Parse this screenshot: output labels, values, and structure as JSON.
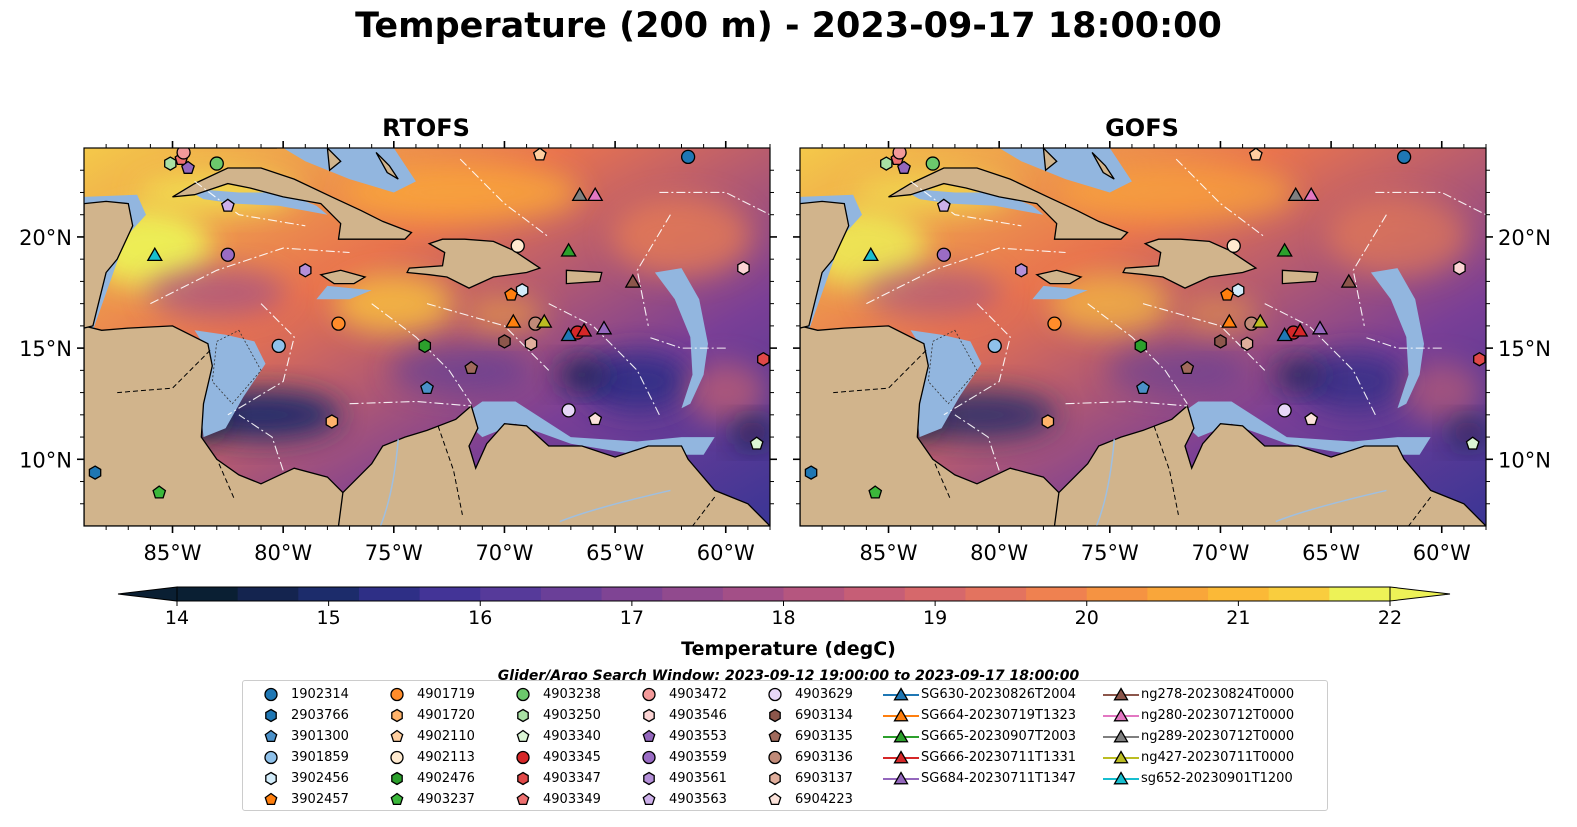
{
  "title": "Temperature (200 m) - 2023-09-17 18:00:00",
  "panels": [
    {
      "title": "RTOFS"
    },
    {
      "title": "GOFS"
    }
  ],
  "axes": {
    "x_ticks": [
      "85°W",
      "80°W",
      "75°W",
      "70°W",
      "65°W",
      "60°W"
    ],
    "y_ticks": [
      "20°N",
      "15°N",
      "10°N"
    ],
    "lon_range": [
      -89,
      -58
    ],
    "lat_range": [
      7,
      24
    ]
  },
  "colorbar": {
    "label": "Temperature (degC)",
    "ticks": [
      "14",
      "15",
      "16",
      "17",
      "18",
      "19",
      "20",
      "21",
      "22"
    ],
    "range": [
      14,
      22
    ],
    "colors": [
      "#0a1f33",
      "#14244f",
      "#1c2c6b",
      "#2e2f86",
      "#433497",
      "#563a9a",
      "#6a3f98",
      "#7f4494",
      "#914a8e",
      "#a34f87",
      "#b5567f",
      "#c65e76",
      "#d6686b",
      "#e3735f",
      "#ef8150",
      "#f59342",
      "#f9a63a",
      "#fbb937",
      "#f9cd3e",
      "#edf257"
    ]
  },
  "search_window": "Glider/Argo Search Window: 2023-09-12 19:00:00 to 2023-09-17 18:00:00",
  "legend": [
    {
      "label": "1902314",
      "marker": "circle",
      "color": "#1f77b4"
    },
    {
      "label": "2903766",
      "marker": "hexagon",
      "color": "#1f77b4"
    },
    {
      "label": "3901300",
      "marker": "pentagon",
      "color": "#4a90c8"
    },
    {
      "label": "3901859",
      "marker": "circle",
      "color": "#8fc1ea"
    },
    {
      "label": "3902456",
      "marker": "hexagon",
      "color": "#d2ecfa"
    },
    {
      "label": "3902457",
      "marker": "pentagon",
      "color": "#ff7f0e"
    },
    {
      "label": "4901719",
      "marker": "circle",
      "color": "#ff8c2a"
    },
    {
      "label": "4901720",
      "marker": "hexagon",
      "color": "#ffb36b"
    },
    {
      "label": "4902110",
      "marker": "pentagon",
      "color": "#ffcfa0"
    },
    {
      "label": "4902113",
      "marker": "circle",
      "color": "#ffead0"
    },
    {
      "label": "4902476",
      "marker": "hexagon",
      "color": "#2ca02c"
    },
    {
      "label": "4903237",
      "marker": "pentagon",
      "color": "#3bb83b"
    },
    {
      "label": "4903238",
      "marker": "circle",
      "color": "#6cc86c"
    },
    {
      "label": "4903250",
      "marker": "hexagon",
      "color": "#a9e0a4"
    },
    {
      "label": "4903340",
      "marker": "pentagon",
      "color": "#dcf6d6"
    },
    {
      "label": "4903345",
      "marker": "circle",
      "color": "#d62728"
    },
    {
      "label": "4903347",
      "marker": "hexagon",
      "color": "#e04848"
    },
    {
      "label": "4903349",
      "marker": "pentagon",
      "color": "#ee7070"
    },
    {
      "label": "4903472",
      "marker": "circle",
      "color": "#f39a9a"
    },
    {
      "label": "4903546",
      "marker": "hexagon",
      "color": "#fbd4d4"
    },
    {
      "label": "4903553",
      "marker": "pentagon",
      "color": "#9467bd"
    },
    {
      "label": "4903559",
      "marker": "circle",
      "color": "#9a6cc4"
    },
    {
      "label": "4903561",
      "marker": "hexagon",
      "color": "#b48fd8"
    },
    {
      "label": "4903563",
      "marker": "pentagon",
      "color": "#cdb0ea"
    },
    {
      "label": "4903629",
      "marker": "circle",
      "color": "#e7d6f7"
    },
    {
      "label": "6903134",
      "marker": "hexagon",
      "color": "#8c564b"
    },
    {
      "label": "6903135",
      "marker": "pentagon",
      "color": "#a06a5c"
    },
    {
      "label": "6903136",
      "marker": "circle",
      "color": "#c08a78"
    },
    {
      "label": "6903137",
      "marker": "hexagon",
      "color": "#e0ae9c"
    },
    {
      "label": "6904223",
      "marker": "pentagon",
      "color": "#fbe2da"
    },
    {
      "label": "SG630-20230826T2004",
      "marker": "triangle",
      "color": "#1f77b4"
    },
    {
      "label": "SG664-20230719T1323",
      "marker": "triangle",
      "color": "#ff7f0e"
    },
    {
      "label": "SG665-20230907T2003",
      "marker": "triangle",
      "color": "#2ca02c"
    },
    {
      "label": "SG666-20230711T1331",
      "marker": "triangle",
      "color": "#d62728"
    },
    {
      "label": "SG684-20230711T1347",
      "marker": "triangle",
      "color": "#9467bd"
    },
    {
      "label": "ng278-20230824T0000",
      "marker": "triangle",
      "color": "#8c564b"
    },
    {
      "label": "ng280-20230712T0000",
      "marker": "triangle",
      "color": "#e377c2"
    },
    {
      "label": "ng289-20230712T0000",
      "marker": "triangle",
      "color": "#7f7f7f"
    },
    {
      "label": "ng427-20230711T0000",
      "marker": "triangle",
      "color": "#bcbd22"
    },
    {
      "label": "sg652-20230901T1200",
      "marker": "triangle",
      "color": "#17becf"
    }
  ],
  "observations": [
    {
      "id": "1902314",
      "lon": -61.7,
      "lat": 23.6
    },
    {
      "id": "2903766",
      "lon": -88.5,
      "lat": 9.4
    },
    {
      "id": "3901300",
      "lon": -73.5,
      "lat": 13.2
    },
    {
      "id": "3901859",
      "lon": -80.2,
      "lat": 15.1
    },
    {
      "id": "3902456",
      "lon": -69.2,
      "lat": 17.6
    },
    {
      "id": "3902457",
      "lon": -69.7,
      "lat": 17.4
    },
    {
      "id": "4901719",
      "lon": -77.5,
      "lat": 16.1
    },
    {
      "id": "4901720",
      "lon": -77.8,
      "lat": 11.7
    },
    {
      "id": "4902110",
      "lon": -68.4,
      "lat": 23.7
    },
    {
      "id": "4902113",
      "lon": -69.4,
      "lat": 19.6
    },
    {
      "id": "4902476",
      "lon": -73.6,
      "lat": 15.1
    },
    {
      "id": "4903237",
      "lon": -85.6,
      "lat": 8.5
    },
    {
      "id": "4903238",
      "lon": -83.0,
      "lat": 23.3
    },
    {
      "id": "4903250",
      "lon": -85.1,
      "lat": 23.3
    },
    {
      "id": "4903340",
      "lon": -58.6,
      "lat": 10.7
    },
    {
      "id": "4903345",
      "lon": -66.7,
      "lat": 15.7
    },
    {
      "id": "4903347",
      "lon": -58.3,
      "lat": 14.5
    },
    {
      "id": "4903349",
      "lon": -84.6,
      "lat": 23.5
    },
    {
      "id": "4903472",
      "lon": -84.5,
      "lat": 23.8
    },
    {
      "id": "4903546",
      "lon": -59.2,
      "lat": 18.6
    },
    {
      "id": "4903553",
      "lon": -84.3,
      "lat": 23.1
    },
    {
      "id": "4903559",
      "lon": -82.5,
      "lat": 19.2
    },
    {
      "id": "4903561",
      "lon": -79.0,
      "lat": 18.5
    },
    {
      "id": "4903563",
      "lon": -82.5,
      "lat": 21.4
    },
    {
      "id": "4903629",
      "lon": -67.1,
      "lat": 12.2
    },
    {
      "id": "6903134",
      "lon": -70.0,
      "lat": 15.3
    },
    {
      "id": "6903135",
      "lon": -71.5,
      "lat": 14.1
    },
    {
      "id": "6903136",
      "lon": -68.6,
      "lat": 16.1
    },
    {
      "id": "6903137",
      "lon": -68.8,
      "lat": 15.2
    },
    {
      "id": "6904223",
      "lon": -65.9,
      "lat": 11.8
    },
    {
      "id": "SG630-20230826T2004",
      "lon": -67.1,
      "lat": 15.6
    },
    {
      "id": "SG664-20230719T1323",
      "lon": -69.6,
      "lat": 16.2
    },
    {
      "id": "SG665-20230907T2003",
      "lon": -67.1,
      "lat": 19.4
    },
    {
      "id": "SG666-20230711T1331",
      "lon": -66.4,
      "lat": 15.8
    },
    {
      "id": "SG684-20230711T1347",
      "lon": -65.5,
      "lat": 15.9
    },
    {
      "id": "ng278-20230824T0000",
      "lon": -64.2,
      "lat": 18.0
    },
    {
      "id": "ng280-20230712T0000",
      "lon": -65.9,
      "lat": 21.9
    },
    {
      "id": "ng289-20230712T0000",
      "lon": -66.6,
      "lat": 21.9
    },
    {
      "id": "ng427-20230711T0000",
      "lon": -68.2,
      "lat": 16.2
    },
    {
      "id": "sg652-20230901T1200",
      "lon": -85.8,
      "lat": 19.2
    }
  ]
}
